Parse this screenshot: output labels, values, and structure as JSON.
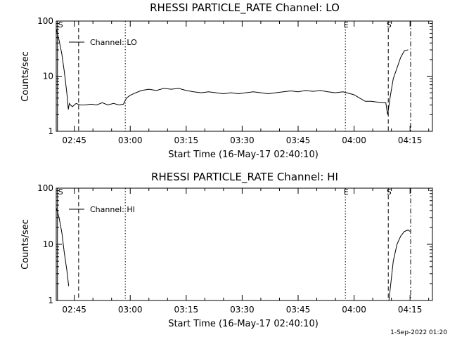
{
  "footer": {
    "timestamp": "1-Sep-2022 01:20"
  },
  "chart_data": [
    {
      "type": "line",
      "title": "RHESSI PARTICLE_RATE Channel: LO",
      "xlabel": "Start Time (16-May-17 02:40:10)",
      "ylabel": "Counts/sec",
      "yscale": "log",
      "ylim": [
        1,
        100
      ],
      "xlim": [
        "02:40:10",
        "04:21:00"
      ],
      "x_unit": "UT (HH:MM)",
      "xticks": [
        "02:45",
        "03:00",
        "03:15",
        "03:30",
        "03:45",
        "04:00",
        "04:15"
      ],
      "yticks": [
        "1",
        "10",
        "100"
      ],
      "legend": {
        "label": "Channel: LO",
        "placement": "top-left"
      },
      "grid": false,
      "series": [
        {
          "name": "Channel: LO",
          "x": [
            "02:40:10",
            "02:40:55",
            "02:41:40",
            "02:42:20",
            "02:43:00",
            "02:43:25",
            "02:43:40",
            "02:44:00",
            "02:44:30",
            "02:45:30",
            "02:46:30",
            "02:48:00",
            "02:49:30",
            "02:51:00",
            "02:52:30",
            "02:54:00",
            "02:55:30",
            "02:57:00",
            "02:58:10",
            "02:59:00",
            "03:00:00",
            "03:01:30",
            "03:03:00",
            "03:05:00",
            "03:07:00",
            "03:09:00",
            "03:11:00",
            "03:13:00",
            "03:15:00",
            "03:17:00",
            "03:19:00",
            "03:21:00",
            "03:23:00",
            "03:25:00",
            "03:27:00",
            "03:29:00",
            "03:31:00",
            "03:33:00",
            "03:35:00",
            "03:37:00",
            "03:39:00",
            "03:41:00",
            "03:43:00",
            "03:45:00",
            "03:47:00",
            "03:49:00",
            "03:51:00",
            "03:53:00",
            "03:55:00",
            "03:57:00",
            "03:58:00",
            "04:00:00",
            "04:01:30",
            "04:03:00",
            "04:04:30",
            "04:06:00",
            "04:07:30",
            "04:08:30",
            "04:09:00",
            "04:09:45",
            "04:10:30",
            "04:11:30",
            "04:12:30",
            "04:13:30",
            "04:14:30"
          ],
          "y": [
            72,
            45,
            25,
            12,
            5,
            2.5,
            3.2,
            3,
            2.8,
            3.2,
            3,
            3,
            3.1,
            3,
            3.3,
            3,
            3.2,
            3,
            3.1,
            4,
            4.5,
            5,
            5.5,
            5.8,
            5.5,
            6,
            5.8,
            6,
            5.5,
            5.2,
            5,
            5.2,
            5,
            4.8,
            5,
            4.8,
            5,
            5.2,
            5,
            4.8,
            5,
            5.2,
            5.4,
            5.2,
            5.5,
            5.3,
            5.5,
            5.2,
            5,
            5.2,
            5,
            4.6,
            4,
            3.5,
            3.5,
            3.4,
            3.3,
            3.3,
            2,
            4.5,
            9,
            14,
            22,
            29,
            30
          ]
        }
      ],
      "markers": [
        {
          "label": "S",
          "time": "02:40:30",
          "style": "solid"
        },
        {
          "label": "",
          "time": "02:46:10",
          "style": "dashed"
        },
        {
          "label": "",
          "time": "02:58:40",
          "style": "dotted"
        },
        {
          "label": "E",
          "time": "03:57:40",
          "style": "dotted"
        },
        {
          "label": "S",
          "time": "04:09:10",
          "style": "dashed"
        },
        {
          "label": "",
          "time": "04:15:10",
          "style": "dashdot"
        }
      ]
    },
    {
      "type": "line",
      "title": "RHESSI PARTICLE_RATE Channel: HI",
      "xlabel": "Start Time (16-May-17 02:40:10)",
      "ylabel": "Counts/sec",
      "yscale": "log",
      "ylim": [
        1,
        100
      ],
      "xlim": [
        "02:40:10",
        "04:21:00"
      ],
      "x_unit": "UT (HH:MM)",
      "xticks": [
        "02:45",
        "03:00",
        "03:15",
        "03:30",
        "03:45",
        "04:00",
        "04:15"
      ],
      "yticks": [
        "1",
        "10",
        "100"
      ],
      "legend": {
        "label": "Channel: HI",
        "placement": "top-left"
      },
      "grid": false,
      "series": [
        {
          "name": "Channel: HI",
          "segments": [
            {
              "x": [
                "02:40:10",
                "02:40:55",
                "02:41:40",
                "02:42:20",
                "02:43:00",
                "02:43:30"
              ],
              "y": [
                45,
                30,
                16,
                7,
                3.5,
                1.8
              ]
            },
            {
              "x": [
                "04:09:20",
                "04:09:50",
                "04:10:30",
                "04:11:30",
                "04:12:30",
                "04:13:30",
                "04:14:30",
                "04:15:00"
              ],
              "y": [
                1,
                2,
                5,
                10,
                14,
                17,
                18,
                17
              ]
            }
          ]
        }
      ],
      "markers": [
        {
          "label": "S",
          "time": "02:40:30",
          "style": "solid"
        },
        {
          "label": "",
          "time": "02:46:10",
          "style": "dashed"
        },
        {
          "label": "",
          "time": "02:58:40",
          "style": "dotted"
        },
        {
          "label": "E",
          "time": "03:57:40",
          "style": "dotted"
        },
        {
          "label": "S",
          "time": "04:09:10",
          "style": "dashed"
        },
        {
          "label": "",
          "time": "04:15:10",
          "style": "dashdot"
        }
      ]
    }
  ]
}
